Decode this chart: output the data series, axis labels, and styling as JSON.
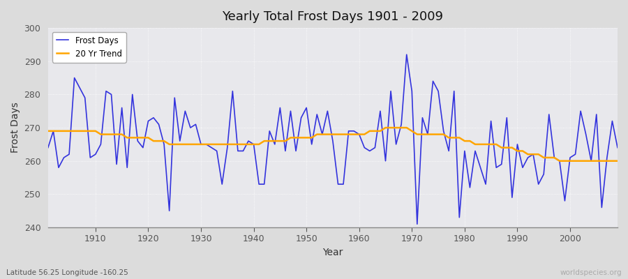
{
  "title": "Yearly Total Frost Days 1901 - 2009",
  "xlabel": "Year",
  "ylabel": "Frost Days",
  "footnote_left": "Latitude 56.25 Longitude -160.25",
  "footnote_right": "worldspecies.org",
  "ylim": [
    240,
    300
  ],
  "xlim": [
    1901,
    2009
  ],
  "yticks": [
    240,
    250,
    260,
    270,
    280,
    290,
    300
  ],
  "xticks": [
    1910,
    1920,
    1930,
    1940,
    1950,
    1960,
    1970,
    1980,
    1990,
    2000
  ],
  "line_color": "#3333dd",
  "trend_color": "#FFA500",
  "bg_color": "#dcdcdc",
  "plot_bg_color": "#e8e8ec",
  "grid_color": "#ffffff",
  "frost_days": {
    "1901": 264,
    "1902": 269,
    "1903": 258,
    "1904": 261,
    "1905": 262,
    "1906": 285,
    "1907": 282,
    "1908": 279,
    "1909": 261,
    "1910": 262,
    "1911": 265,
    "1912": 281,
    "1913": 280,
    "1914": 259,
    "1915": 276,
    "1916": 258,
    "1917": 280,
    "1918": 266,
    "1919": 264,
    "1920": 272,
    "1921": 273,
    "1922": 271,
    "1923": 265,
    "1924": 245,
    "1925": 279,
    "1926": 266,
    "1927": 275,
    "1928": 270,
    "1929": 271,
    "1930": 265,
    "1931": 265,
    "1932": 264,
    "1933": 263,
    "1934": 253,
    "1935": 264,
    "1936": 281,
    "1937": 263,
    "1938": 263,
    "1939": 266,
    "1940": 265,
    "1941": 253,
    "1942": 253,
    "1943": 269,
    "1944": 265,
    "1945": 276,
    "1946": 263,
    "1947": 275,
    "1948": 263,
    "1949": 273,
    "1950": 276,
    "1951": 265,
    "1952": 274,
    "1953": 268,
    "1954": 275,
    "1955": 266,
    "1956": 253,
    "1957": 253,
    "1958": 269,
    "1959": 269,
    "1960": 268,
    "1961": 264,
    "1962": 263,
    "1963": 264,
    "1964": 275,
    "1965": 260,
    "1966": 281,
    "1967": 265,
    "1968": 271,
    "1969": 292,
    "1970": 281,
    "1971": 241,
    "1972": 273,
    "1973": 268,
    "1974": 284,
    "1975": 281,
    "1976": 269,
    "1977": 263,
    "1978": 281,
    "1979": 243,
    "1980": 263,
    "1981": 252,
    "1982": 263,
    "1983": 258,
    "1984": 253,
    "1985": 272,
    "1986": 258,
    "1987": 259,
    "1988": 273,
    "1989": 249,
    "1990": 265,
    "1991": 258,
    "1992": 261,
    "1993": 262,
    "1994": 253,
    "1995": 256,
    "1996": 274,
    "1997": 261,
    "1998": 260,
    "1999": 248,
    "2000": 261,
    "2001": 262,
    "2002": 275,
    "2003": 268,
    "2004": 260,
    "2005": 274,
    "2006": 246,
    "2007": 261,
    "2008": 272,
    "2009": 264
  },
  "trend_days": {
    "1901": 269,
    "1902": 269,
    "1903": 269,
    "1904": 269,
    "1905": 269,
    "1906": 269,
    "1907": 269,
    "1908": 269,
    "1909": 269,
    "1910": 269,
    "1911": 268,
    "1912": 268,
    "1913": 268,
    "1914": 268,
    "1915": 268,
    "1916": 267,
    "1917": 267,
    "1918": 267,
    "1919": 267,
    "1920": 267,
    "1921": 266,
    "1922": 266,
    "1923": 266,
    "1924": 265,
    "1925": 265,
    "1926": 265,
    "1927": 265,
    "1928": 265,
    "1929": 265,
    "1930": 265,
    "1931": 265,
    "1932": 265,
    "1933": 265,
    "1934": 265,
    "1935": 265,
    "1936": 265,
    "1937": 265,
    "1938": 265,
    "1939": 265,
    "1940": 265,
    "1941": 265,
    "1942": 266,
    "1943": 266,
    "1944": 266,
    "1945": 266,
    "1946": 266,
    "1947": 267,
    "1948": 267,
    "1949": 267,
    "1950": 267,
    "1951": 267,
    "1952": 268,
    "1953": 268,
    "1954": 268,
    "1955": 268,
    "1956": 268,
    "1957": 268,
    "1958": 268,
    "1959": 268,
    "1960": 268,
    "1961": 268,
    "1962": 269,
    "1963": 269,
    "1964": 269,
    "1965": 270,
    "1966": 270,
    "1967": 270,
    "1968": 270,
    "1969": 270,
    "1970": 269,
    "1971": 268,
    "1972": 268,
    "1973": 268,
    "1974": 268,
    "1975": 268,
    "1976": 268,
    "1977": 267,
    "1978": 267,
    "1979": 267,
    "1980": 266,
    "1981": 266,
    "1982": 265,
    "1983": 265,
    "1984": 265,
    "1985": 265,
    "1986": 265,
    "1987": 264,
    "1988": 264,
    "1989": 264,
    "1990": 263,
    "1991": 263,
    "1992": 262,
    "1993": 262,
    "1994": 262,
    "1995": 261,
    "1996": 261,
    "1997": 261,
    "1998": 260,
    "1999": 260,
    "2000": 260,
    "2001": 260,
    "2002": 260,
    "2003": 260,
    "2004": 260,
    "2005": 260,
    "2006": 260,
    "2007": 260,
    "2008": 260,
    "2009": 260
  }
}
